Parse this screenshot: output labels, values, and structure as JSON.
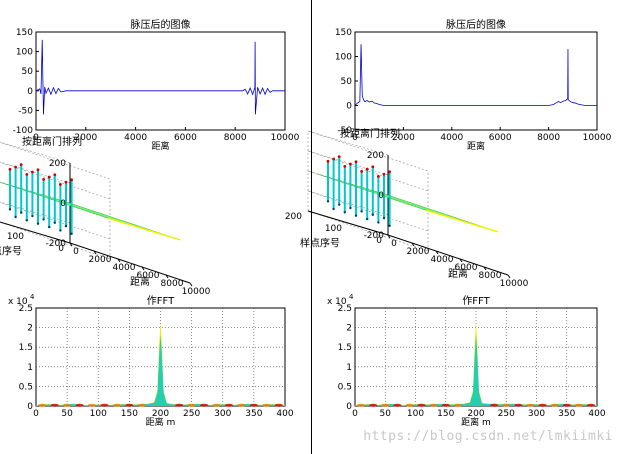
{
  "watermark": "https://blog.csdn.net/lmkiimki",
  "colors": {
    "line": "#0000cc",
    "surface_green": "#70f070",
    "surface_cyan": "#00c8d0",
    "surface_yellow": "#f0f000",
    "surface_red": "#d00000"
  },
  "chart_data": [
    {
      "panel": "left-top",
      "type": "line",
      "title": "脉压后的图像",
      "xlabel": "距离",
      "ylabel": "",
      "xlim": [
        0,
        10000
      ],
      "ylim": [
        -100,
        150
      ],
      "xticks": [
        "0",
        "2000",
        "4000",
        "6000",
        "8000",
        "10000"
      ],
      "yticks": [
        "150",
        "100",
        "50",
        "0",
        "-50",
        "-100"
      ],
      "grid": false,
      "series": [
        {
          "x": [
            0,
            150,
            200,
            250,
            300,
            350,
            400,
            500,
            600,
            700,
            800,
            900,
            1000,
            1200,
            8300,
            8400,
            8500,
            8600,
            8700,
            8790,
            8800,
            8810,
            8900,
            9000,
            9100,
            9200,
            9300,
            9400,
            9500,
            10000
          ],
          "y": [
            0,
            5,
            -8,
            130,
            -60,
            10,
            -6,
            7,
            -9,
            8,
            -7,
            6,
            -3,
            0,
            0,
            4,
            -8,
            7,
            -9,
            8,
            125,
            -60,
            9,
            -8,
            7,
            -9,
            6,
            -4,
            0,
            0
          ]
        }
      ]
    },
    {
      "panel": "left-mid",
      "type": "surface",
      "title": "按距离门排列",
      "xlabel": "距离",
      "ylabel": "样点序号",
      "xticks": [
        "0",
        "2000",
        "4000",
        "6000",
        "8000",
        "10000"
      ],
      "yticks": [
        "0",
        "100",
        "200"
      ],
      "zticks": [
        "200",
        "0",
        "-200"
      ],
      "zlim": [
        -200,
        200
      ]
    },
    {
      "panel": "left-bottom",
      "type": "area",
      "title": "作FFT",
      "xlabel": "距离 m",
      "ylabel": "",
      "exponent_label": "x 10",
      "exponent": "4",
      "xlim": [
        0,
        400
      ],
      "ylim": [
        0,
        2.5
      ],
      "xticks": [
        "0",
        "50",
        "100",
        "150",
        "200",
        "250",
        "300",
        "350",
        "400"
      ],
      "yticks": [
        "2.5",
        "2",
        "1.5",
        "1",
        "0.5",
        "0"
      ],
      "grid": true,
      "series": [
        {
          "x": [
            0,
            20,
            40,
            60,
            80,
            100,
            120,
            140,
            160,
            180,
            190,
            195,
            198,
            200,
            202,
            205,
            210,
            220,
            240,
            260,
            280,
            300,
            320,
            340,
            360,
            380,
            400
          ],
          "y": [
            0.02,
            0.05,
            0.03,
            0.06,
            0.02,
            0.04,
            0.03,
            0.05,
            0.04,
            0.06,
            0.1,
            0.4,
            1.6,
            2.15,
            1.6,
            0.4,
            0.08,
            0.05,
            0.04,
            0.06,
            0.03,
            0.05,
            0.03,
            0.06,
            0.03,
            0.05,
            0.02
          ]
        }
      ]
    },
    {
      "panel": "right-top",
      "type": "line",
      "title": "脉压后的图像",
      "xlabel": "距离",
      "ylabel": "",
      "xlim": [
        0,
        10000
      ],
      "ylim": [
        -50,
        150
      ],
      "xticks": [
        "0",
        "2000",
        "4000",
        "6000",
        "8000",
        "10000"
      ],
      "yticks": [
        "150",
        "100",
        "50",
        "0",
        "-50"
      ],
      "grid": false,
      "series": [
        {
          "x": [
            0,
            100,
            200,
            250,
            300,
            350,
            400,
            500,
            600,
            700,
            800,
            900,
            1000,
            1200,
            8000,
            8200,
            8300,
            8400,
            8500,
            8600,
            8700,
            8790,
            8800,
            8810,
            8900,
            9000,
            9100,
            9200,
            9300,
            9500,
            10000
          ],
          "y": [
            0,
            5,
            8,
            125,
            20,
            12,
            8,
            10,
            7,
            9,
            5,
            4,
            2,
            0,
            0,
            2,
            5,
            8,
            6,
            9,
            10,
            14,
            115,
            12,
            8,
            6,
            5,
            3,
            2,
            0,
            0
          ]
        }
      ]
    },
    {
      "panel": "right-mid",
      "type": "surface",
      "title": "按距离门排列",
      "xlabel": "距离",
      "ylabel": "样点序号",
      "xticks": [
        "0",
        "2000",
        "4000",
        "6000",
        "8000",
        "10000"
      ],
      "yticks": [
        "0",
        "100",
        "200"
      ],
      "zticks": [
        "200",
        "0",
        "-200"
      ],
      "zlim": [
        -200,
        200
      ]
    },
    {
      "panel": "right-bottom",
      "type": "area",
      "title": "作FFT",
      "xlabel": "距离 m",
      "ylabel": "",
      "exponent_label": "x 10",
      "exponent": "4",
      "xlim": [
        0,
        400
      ],
      "ylim": [
        0,
        2.5
      ],
      "xticks": [
        "0",
        "50",
        "100",
        "150",
        "200",
        "250",
        "300",
        "350",
        "400"
      ],
      "yticks": [
        "2.5",
        "2",
        "1.5",
        "1",
        "0.5",
        "0"
      ],
      "grid": true,
      "series": [
        {
          "x": [
            0,
            20,
            40,
            60,
            80,
            100,
            120,
            140,
            160,
            180,
            190,
            195,
            198,
            200,
            202,
            205,
            210,
            220,
            240,
            260,
            280,
            300,
            320,
            340,
            360,
            380,
            400
          ],
          "y": [
            0.02,
            0.05,
            0.03,
            0.06,
            0.02,
            0.05,
            0.04,
            0.06,
            0.04,
            0.06,
            0.1,
            0.4,
            1.6,
            2.15,
            1.6,
            0.4,
            0.08,
            0.06,
            0.05,
            0.06,
            0.04,
            0.05,
            0.03,
            0.06,
            0.04,
            0.05,
            0.02
          ]
        }
      ]
    }
  ]
}
